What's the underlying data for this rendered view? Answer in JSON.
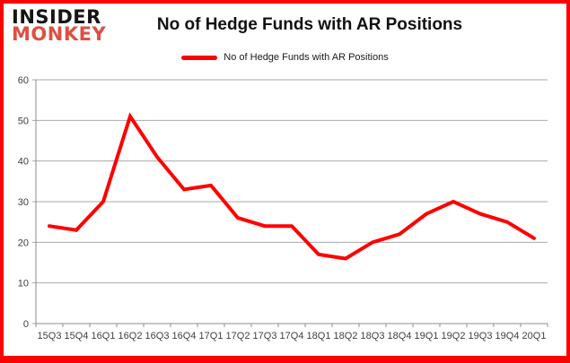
{
  "header": {
    "logo_line1": "INSIDER",
    "logo_line2": "MONKEY",
    "title": "No of Hedge Funds with AR Positions"
  },
  "legend": {
    "label": "No of Hedge Funds with AR Positions",
    "color": "#ff0000"
  },
  "chart_data": {
    "type": "line",
    "title": "No of Hedge Funds with AR Positions",
    "categories": [
      "15Q3",
      "15Q4",
      "16Q1",
      "16Q2",
      "16Q3",
      "16Q4",
      "17Q1",
      "17Q2",
      "17Q3",
      "17Q4",
      "18Q1",
      "18Q2",
      "18Q3",
      "18Q4",
      "19Q1",
      "19Q2",
      "19Q3",
      "19Q4",
      "20Q1"
    ],
    "series": [
      {
        "name": "No of Hedge Funds with AR Positions",
        "color": "#ff0000",
        "values": [
          24,
          23,
          30,
          51,
          41,
          33,
          34,
          26,
          24,
          24,
          17,
          16,
          20,
          22,
          27,
          30,
          27,
          25,
          21
        ]
      }
    ],
    "xlabel": "",
    "ylabel": "",
    "ylim": [
      0,
      60
    ],
    "ytick_interval": 10,
    "grid": true,
    "legend_position": "top-center"
  },
  "colors": {
    "accent_red": "#ff0000",
    "logo_red": "#dd4f42",
    "frame_border": "#ff0000",
    "gridline": "#a8a8a8",
    "axis": "#8c8c8c",
    "tick_text": "#3f3f3f",
    "title_text": "#111111"
  }
}
